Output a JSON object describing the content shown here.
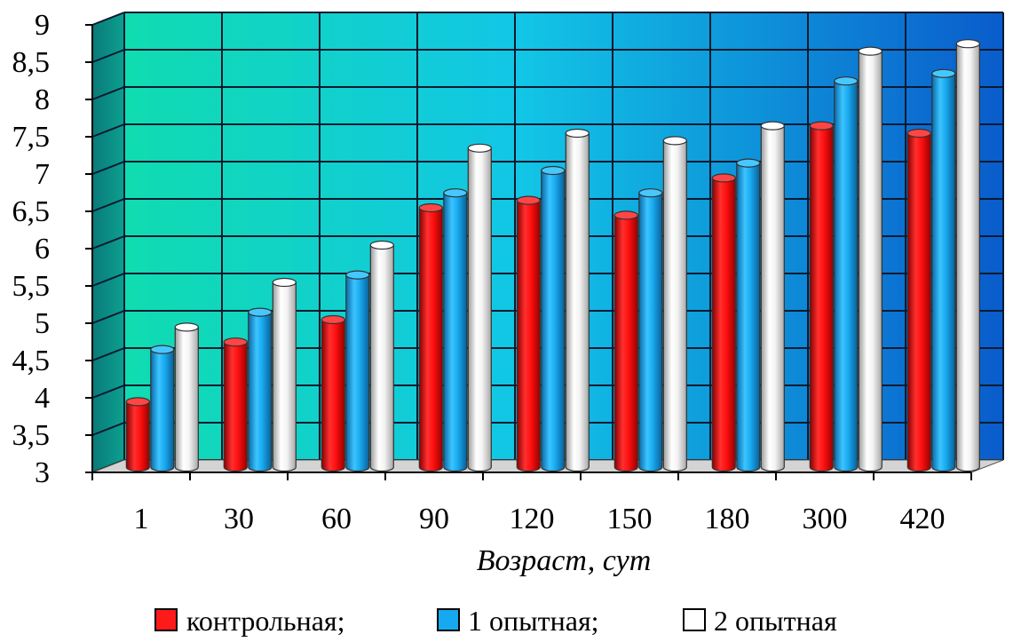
{
  "chart_data": {
    "type": "bar",
    "categories": [
      "1",
      "30",
      "60",
      "90",
      "120",
      "150",
      "180",
      "300",
      "420"
    ],
    "series": [
      {
        "name": "контрольная;",
        "color": "#ff1a1a",
        "values": [
          3.9,
          4.7,
          5.0,
          6.5,
          6.6,
          6.4,
          6.9,
          7.6,
          7.5
        ]
      },
      {
        "name": "1 опытная;",
        "color": "#14a9f0",
        "values": [
          4.6,
          5.1,
          5.6,
          6.7,
          7.0,
          6.7,
          7.1,
          8.2,
          8.3
        ]
      },
      {
        "name": "2 опытная",
        "color": "#ffffff",
        "values": [
          4.9,
          5.5,
          6.0,
          7.3,
          7.5,
          7.4,
          7.6,
          8.6,
          8.7
        ]
      }
    ],
    "title": "",
    "xlabel": "Возраст, сут",
    "ylabel": "",
    "ylim": [
      3,
      9
    ],
    "yticks": [
      "3",
      "3,5",
      "4",
      "4,5",
      "5",
      "5,5",
      "6",
      "6,5",
      "7",
      "7,5",
      "8",
      "8,5",
      "9"
    ],
    "grid": true,
    "legend": "bottom",
    "background_colors": {
      "left": "#10d8b0",
      "middle": "#10c8e8",
      "right": "#0a5ecc"
    }
  }
}
